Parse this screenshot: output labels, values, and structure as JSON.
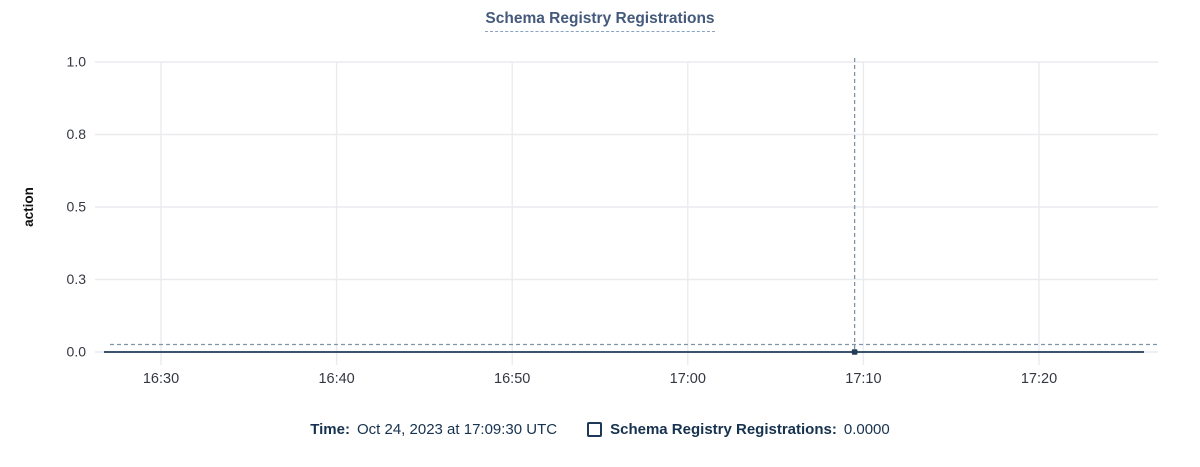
{
  "chart": {
    "title": "Schema Registry Registrations"
  },
  "chart_data": {
    "type": "line",
    "title": "Schema Registry Registrations",
    "xlabel": "",
    "ylabel": "action",
    "x_tick_labels": [
      "16:30",
      "16:40",
      "16:50",
      "17:00",
      "17:10",
      "17:20"
    ],
    "y_tick_labels": [
      "1.0",
      "0.8",
      "0.5",
      "0.3",
      "0.0"
    ],
    "y_tick_values": [
      1.0,
      0.75,
      0.5,
      0.25,
      0.0
    ],
    "ylim": [
      0,
      1
    ],
    "grid": true,
    "legend_position": "bottom",
    "series": [
      {
        "name": "Schema Registry Registrations",
        "description": "flat line, constant value 0 across entire visible time range",
        "constant_value": 0
      }
    ],
    "hover_point": {
      "time": "17:09:30",
      "value": 0.0
    }
  },
  "tooltip": {
    "time_label": "Time:",
    "time_value": "Oct 24, 2023 at 17:09:30 UTC",
    "series_label": "Schema Registry Registrations:",
    "series_value": "0.0000"
  },
  "colors": {
    "line": "#1f3c5c",
    "marker": "#243c56",
    "grid": "#e9ebef",
    "crosshair": "#7f93a9",
    "tick_text": "#343741",
    "axis_label_text": "#111111",
    "title_text": "#44597b",
    "legend_text": "#16324f",
    "title_underline": "#8ba3c2"
  }
}
